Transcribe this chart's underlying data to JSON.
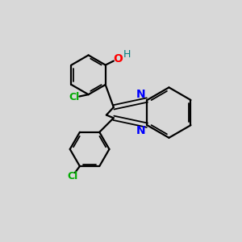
{
  "background_color": "#d8d8d8",
  "bond_color": "#000000",
  "N_color": "#0000ff",
  "O_color": "#ff0000",
  "H_color": "#008080",
  "Cl_color": "#00aa00",
  "figsize": [
    3.0,
    3.0
  ],
  "dpi": 100,
  "xlim": [
    0,
    10
  ],
  "ylim": [
    0,
    10
  ]
}
